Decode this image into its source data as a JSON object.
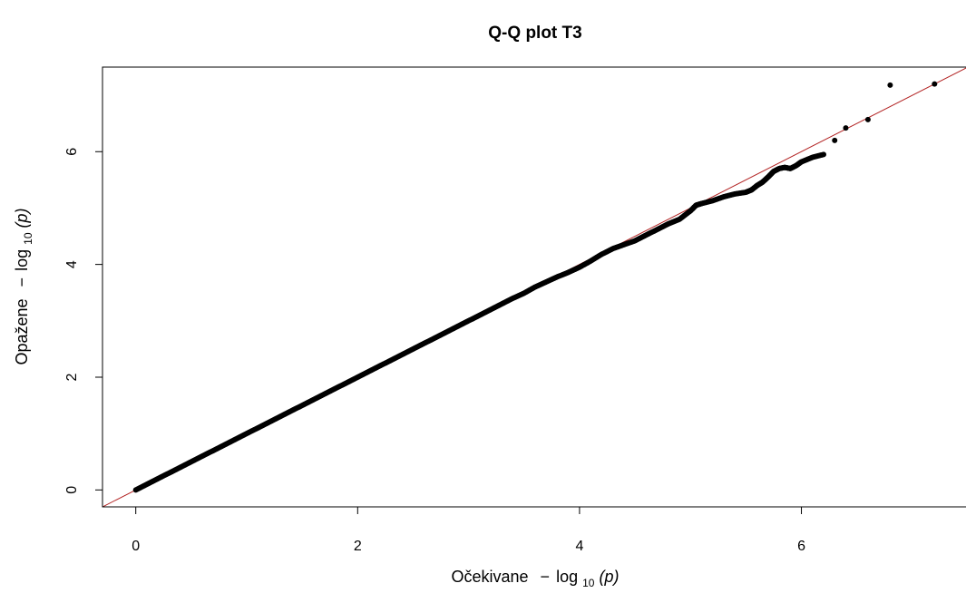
{
  "chart_data": {
    "type": "scatter",
    "title": "Q-Q plot T3",
    "xlabel": {
      "prefix": "Očekivane",
      "minus": "−",
      "log": "log",
      "sub": "10",
      "arg": "(p)"
    },
    "ylabel": {
      "prefix": "Opažene",
      "minus": "−",
      "log": "log",
      "sub": "10",
      "arg": "(p)"
    },
    "xlim": [
      -0.3,
      7.5
    ],
    "ylim": [
      -0.3,
      7.5
    ],
    "x_ticks": [
      "0",
      "2",
      "4",
      "6"
    ],
    "y_ticks": [
      "0",
      "2",
      "4",
      "6"
    ],
    "reference_line": {
      "type": "y=x",
      "color": "#b22222"
    },
    "point_color": "#000000",
    "series": [
      {
        "points": [
          [
            0.0,
            0.0
          ],
          [
            0.1,
            0.1
          ],
          [
            0.2,
            0.2
          ],
          [
            0.3,
            0.3
          ],
          [
            0.4,
            0.4
          ],
          [
            0.5,
            0.5
          ],
          [
            0.6,
            0.6
          ],
          [
            0.7,
            0.7
          ],
          [
            0.8,
            0.8
          ],
          [
            0.9,
            0.9
          ],
          [
            1.0,
            1.0
          ],
          [
            1.1,
            1.1
          ],
          [
            1.2,
            1.2
          ],
          [
            1.3,
            1.3
          ],
          [
            1.4,
            1.4
          ],
          [
            1.5,
            1.5
          ],
          [
            1.6,
            1.6
          ],
          [
            1.7,
            1.7
          ],
          [
            1.8,
            1.8
          ],
          [
            1.9,
            1.9
          ],
          [
            2.0,
            2.0
          ],
          [
            2.1,
            2.1
          ],
          [
            2.2,
            2.2
          ],
          [
            2.3,
            2.3
          ],
          [
            2.4,
            2.4
          ],
          [
            2.5,
            2.5
          ],
          [
            2.6,
            2.6
          ],
          [
            2.7,
            2.7
          ],
          [
            2.8,
            2.8
          ],
          [
            2.9,
            2.9
          ],
          [
            3.0,
            3.0
          ],
          [
            3.1,
            3.1
          ],
          [
            3.2,
            3.2
          ],
          [
            3.3,
            3.3
          ],
          [
            3.4,
            3.4
          ],
          [
            3.5,
            3.49
          ],
          [
            3.6,
            3.6
          ],
          [
            3.7,
            3.69
          ],
          [
            3.8,
            3.78
          ],
          [
            3.9,
            3.86
          ],
          [
            4.0,
            3.95
          ],
          [
            4.1,
            4.06
          ],
          [
            4.2,
            4.18
          ],
          [
            4.3,
            4.28
          ],
          [
            4.4,
            4.35
          ],
          [
            4.5,
            4.42
          ],
          [
            4.6,
            4.52
          ],
          [
            4.7,
            4.62
          ],
          [
            4.8,
            4.72
          ],
          [
            4.9,
            4.8
          ],
          [
            5.0,
            4.95
          ],
          [
            5.05,
            5.05
          ],
          [
            5.1,
            5.08
          ],
          [
            5.2,
            5.13
          ],
          [
            5.3,
            5.2
          ],
          [
            5.4,
            5.25
          ],
          [
            5.5,
            5.28
          ],
          [
            5.55,
            5.32
          ],
          [
            5.6,
            5.4
          ],
          [
            5.65,
            5.46
          ],
          [
            5.7,
            5.55
          ],
          [
            5.75,
            5.65
          ],
          [
            5.8,
            5.7
          ],
          [
            5.85,
            5.72
          ],
          [
            5.9,
            5.7
          ],
          [
            5.95,
            5.75
          ],
          [
            6.0,
            5.82
          ],
          [
            6.1,
            5.9
          ],
          [
            6.2,
            5.95
          ],
          [
            6.3,
            6.2
          ],
          [
            6.4,
            6.42
          ],
          [
            6.6,
            6.57
          ],
          [
            6.8,
            7.18
          ],
          [
            7.2,
            7.2
          ]
        ]
      }
    ]
  }
}
